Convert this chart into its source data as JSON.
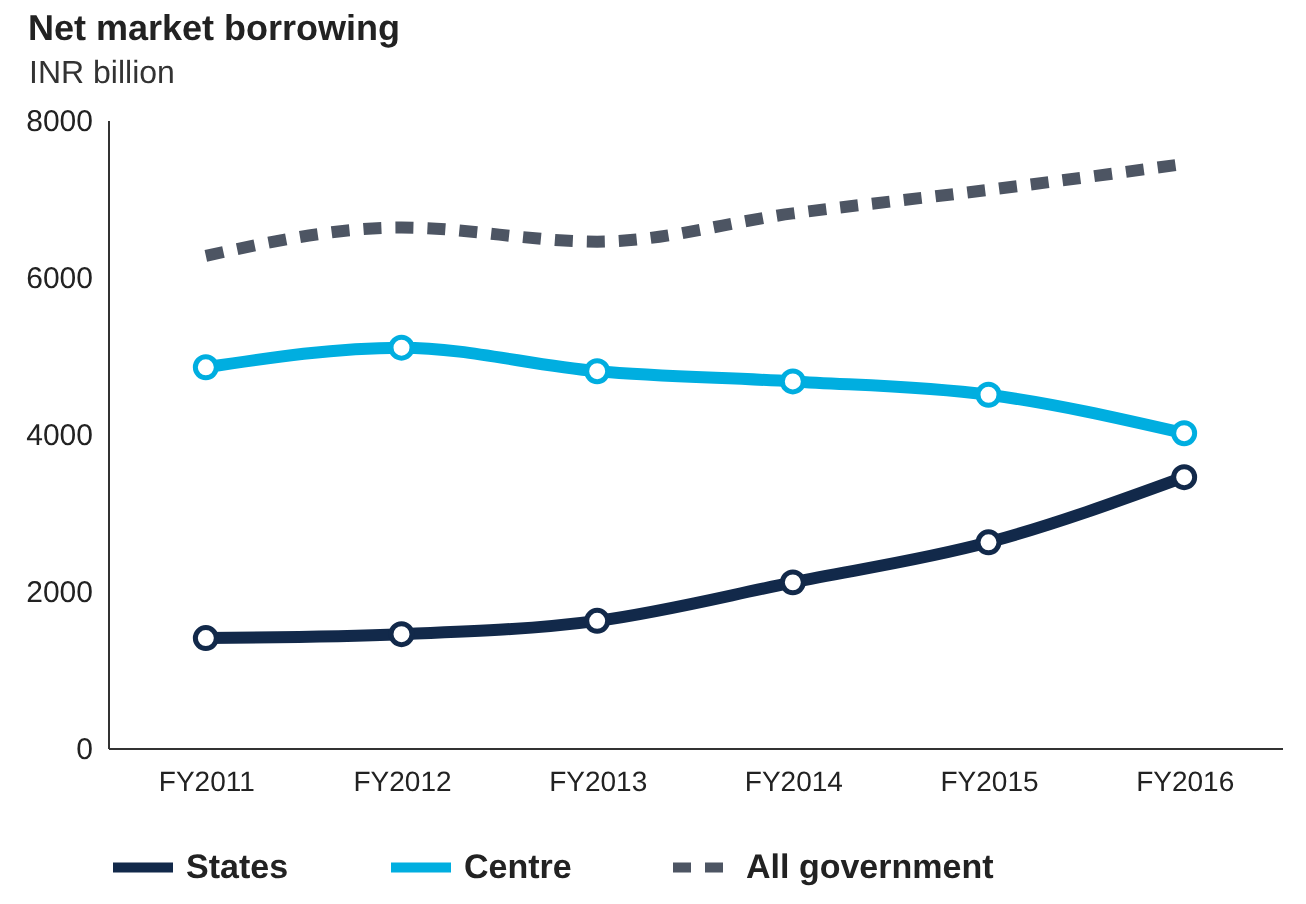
{
  "chart_data": {
    "type": "line",
    "title": "Net market borrowing",
    "ylabel": "INR billion",
    "categories": [
      "FY2011",
      "FY2012",
      "FY2013",
      "FY2014",
      "FY2015",
      "FY2016"
    ],
    "series": [
      {
        "name": "States",
        "color": "#12294a",
        "values": [
          1400,
          1450,
          1620,
          2110,
          2620,
          3450
        ]
      },
      {
        "name": "Centre",
        "color": "#00aee0",
        "values": [
          4850,
          5100,
          4800,
          4670,
          4500,
          4010
        ]
      },
      {
        "name": "All government",
        "color": "#4d5563",
        "values": [
          6270,
          6630,
          6450,
          6810,
          7110,
          7440
        ],
        "line_style": "dashed",
        "marker": "none"
      }
    ],
    "ylim": [
      0,
      8000
    ],
    "yticks": [
      0,
      2000,
      4000,
      6000,
      8000
    ],
    "grid": false,
    "legend": "bottom",
    "marker": "circle",
    "line_style": "solid"
  }
}
